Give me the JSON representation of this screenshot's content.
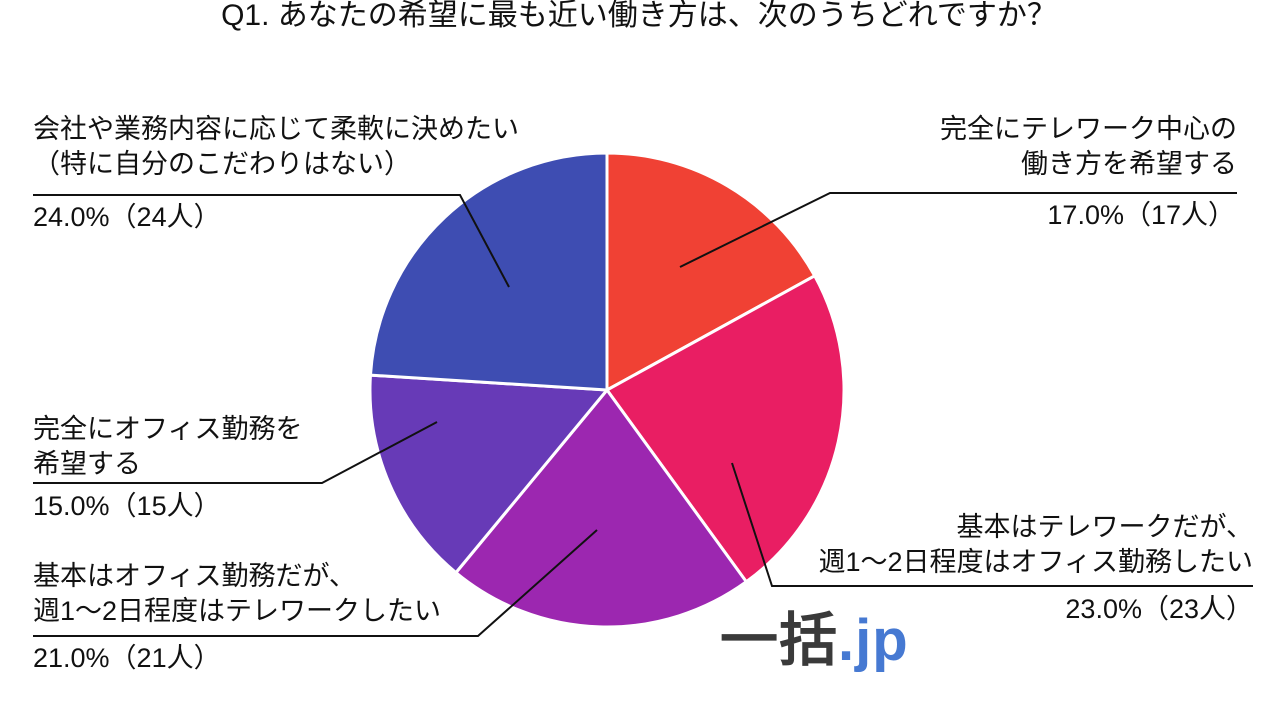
{
  "chart_data": {
    "type": "pie",
    "title": "Q1. あなたの希望に最も近い働き方は、次のうちどれですか？",
    "start_angle_deg": 0,
    "direction": "clockwise",
    "unit": "人",
    "total_responses": 100,
    "grid": false,
    "legend": "none (direct callout labels)",
    "slices": [
      {
        "id": "full-telework",
        "label": "完全にテレワーク中心の働き方を希望する",
        "label_lines": [
          "完全にテレワーク中心の",
          "働き方を希望する"
        ],
        "percent": 17.0,
        "count": 17,
        "value_label": "17.0%（17人）",
        "color": "#F04134"
      },
      {
        "id": "mostly-telework",
        "label": "基本はテレワークだが、週1～2日程度はオフィス勤務したい",
        "label_lines": [
          "基本はテレワークだが、",
          "週1～2日程度はオフィス勤務したい"
        ],
        "percent": 23.0,
        "count": 23,
        "value_label": "23.0%（23人）",
        "color": "#E91E63"
      },
      {
        "id": "mostly-office",
        "label": "基本はオフィス勤務だが、週1～2日程度はテレワークしたい",
        "label_lines": [
          "基本はオフィス勤務だが、",
          "週1～2日程度はテレワークしたい"
        ],
        "percent": 21.0,
        "count": 21,
        "value_label": "21.0%（21人）",
        "color": "#9C27B0"
      },
      {
        "id": "full-office",
        "label": "完全にオフィス勤務を希望する",
        "label_lines": [
          "完全にオフィス勤務を",
          "希望する"
        ],
        "percent": 15.0,
        "count": 15,
        "value_label": "15.0%（15人）",
        "color": "#673AB7"
      },
      {
        "id": "flexible",
        "label": "会社や業務内容に応じて柔軟に決めたい（特に自分のこだわりはない）",
        "label_lines": [
          "会社や業務内容に応じて柔軟に決めたい",
          "（特に自分のこだわりはない）"
        ],
        "percent": 24.0,
        "count": 24,
        "value_label": "24.0%（24人）",
        "color": "#3E4DB2"
      }
    ]
  },
  "footer_logo": {
    "text_main": "一括",
    "text_suffix": ".jp",
    "main_color": "#3a3a3a",
    "suffix_color": "#4679D2"
  },
  "colors": {
    "background": "#ffffff",
    "text": "#111111",
    "leader_line": "#111111",
    "slice_border": "#ffffff"
  }
}
